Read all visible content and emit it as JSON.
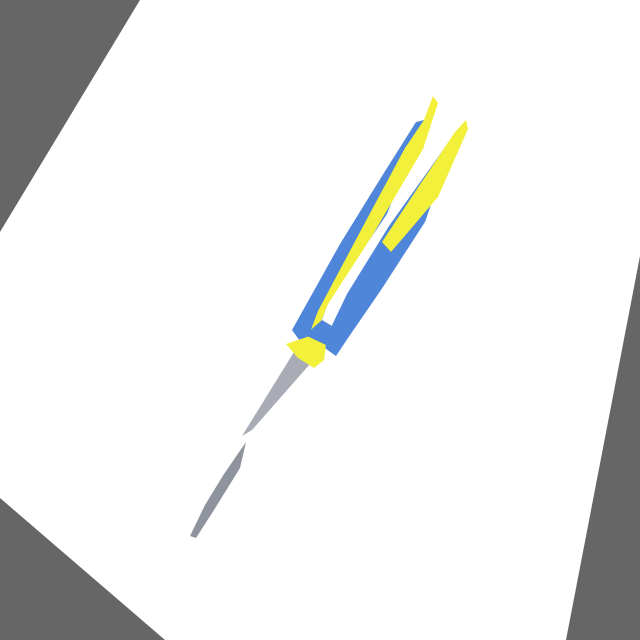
{
  "scene": {
    "subject": "scissors-photo",
    "colors": {
      "background": "#666666",
      "paper": "#FFFFFF",
      "handle_blue": "#4F86D9",
      "handle_yellow": "#F2F03A",
      "blade": "#A9ACB5",
      "blade_shadow": "#8F939D"
    }
  }
}
